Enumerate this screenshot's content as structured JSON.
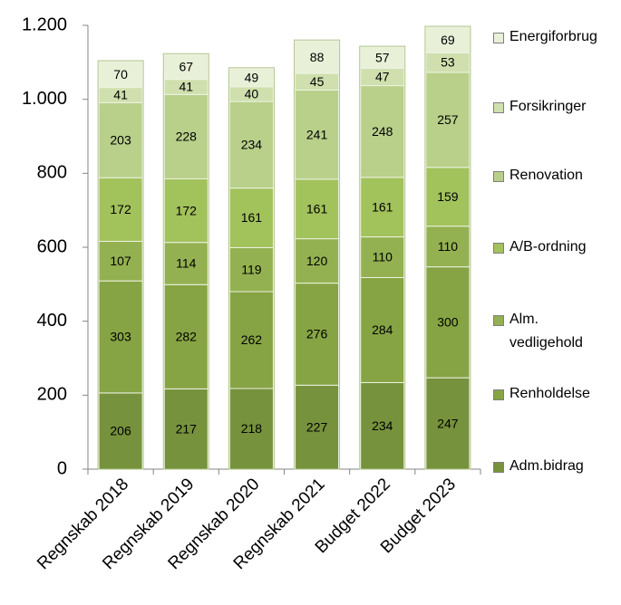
{
  "chart_data": {
    "type": "stacked_bar",
    "categories": [
      "Regnskab 2018",
      "Regnskab 2019",
      "Regnskab 2020",
      "Regnskab 2021",
      "Budget 2022",
      "Budget 2023"
    ],
    "series": [
      {
        "name": "Adm.bidrag",
        "color": "#76923c",
        "values": [
          206,
          217,
          218,
          227,
          234,
          247
        ]
      },
      {
        "name": "Renholdelse",
        "color": "#86a444",
        "values": [
          303,
          282,
          262,
          276,
          284,
          300
        ]
      },
      {
        "name": "Alm. vedligehold",
        "color": "#93b150",
        "values": [
          107,
          114,
          119,
          120,
          110,
          110
        ]
      },
      {
        "name": "A/B-ordning",
        "color": "#a2c25c",
        "values": [
          172,
          172,
          161,
          161,
          161,
          159
        ]
      },
      {
        "name": "Renovation",
        "color": "#b8d08a",
        "values": [
          203,
          228,
          234,
          241,
          248,
          257
        ]
      },
      {
        "name": "Forsikringer",
        "color": "#cfe0ae",
        "values": [
          41,
          41,
          40,
          45,
          47,
          53
        ]
      },
      {
        "name": "Energiforbrug",
        "color": "#e8f0d8",
        "values": [
          70,
          67,
          49,
          88,
          57,
          69
        ]
      }
    ],
    "ylim": [
      0,
      1200
    ],
    "yticks": [
      0,
      200,
      400,
      600,
      800,
      {
        "value": 1000,
        "label": "1.000"
      },
      {
        "value": 1200,
        "label": "1.200"
      }
    ]
  }
}
